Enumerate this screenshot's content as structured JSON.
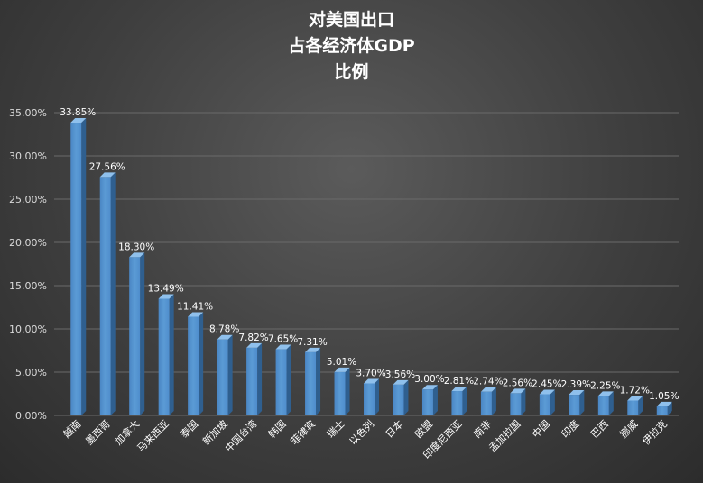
{
  "chart_data": {
    "type": "bar",
    "title_lines": [
      "对美国出口",
      "占各经济体GDP",
      "比例"
    ],
    "categories": [
      "越南",
      "墨西哥",
      "加拿大",
      "马来西亚",
      "泰国",
      "新加坡",
      "中国台湾",
      "韩国",
      "菲律宾",
      "瑞士",
      "以色列",
      "日本",
      "欧盟",
      "印度尼西亚",
      "南非",
      "孟加拉国",
      "中国",
      "印度",
      "巴西",
      "挪威",
      "伊拉克"
    ],
    "values": [
      33.85,
      27.56,
      18.3,
      13.49,
      11.41,
      8.78,
      7.82,
      7.65,
      7.31,
      5.01,
      3.7,
      3.56,
      3.0,
      2.81,
      2.74,
      2.56,
      2.45,
      2.39,
      2.25,
      1.72,
      1.05
    ],
    "value_labels": [
      "33.85%",
      "27.56%",
      "18.30%",
      "13.49%",
      "11.41%",
      "8.78%",
      "7.82%",
      "7.65%",
      "7.31%",
      "5.01%",
      "3.70%",
      "3.56%",
      "3.00%",
      "2.81%",
      "2.74%",
      "2.56%",
      "2.45%",
      "2.39%",
      "2.25%",
      "1.72%",
      "1.05%"
    ],
    "y_ticks": [
      "0.00%",
      "5.00%",
      "10.00%",
      "15.00%",
      "20.00%",
      "25.00%",
      "30.00%",
      "35.00%"
    ],
    "ylim": [
      0,
      35
    ],
    "grid": true,
    "legend": "none",
    "colors": {
      "bar_front": "#5b9bd5",
      "bar_side": "#2f5f8f",
      "bar_top": "#8fc0ec",
      "grid": "#6a6a6a",
      "text": "#ffffff",
      "tick_text": "#d9d9d9"
    }
  }
}
